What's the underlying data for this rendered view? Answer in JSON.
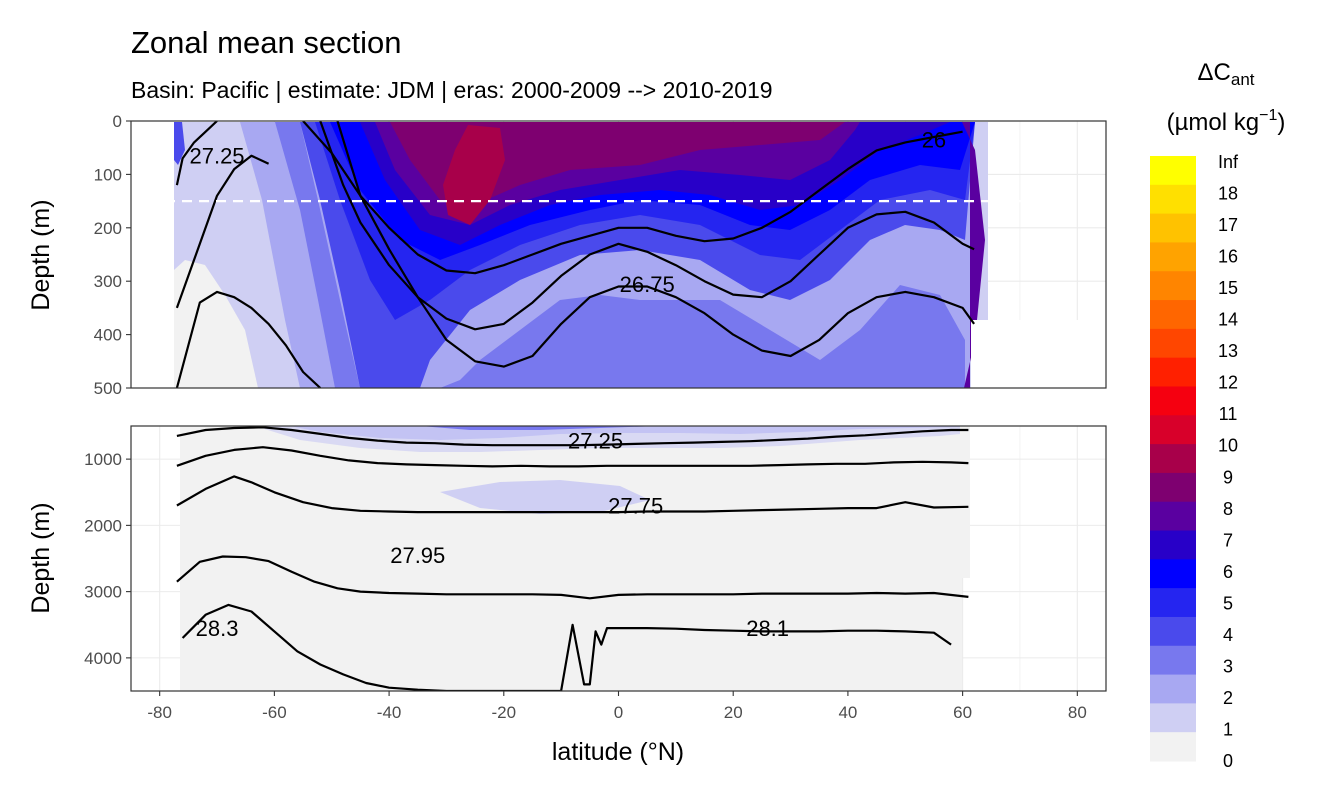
{
  "chart_data": {
    "type": "heatmap",
    "title": "Zonal mean section",
    "subtitle": "Basin: Pacific | estimate: JDM  | eras: 2000-2009 --> 2010-2019",
    "xlabel": "latitude (°N)",
    "xlim": [
      -85,
      85
    ],
    "x_ticks": [
      "-80",
      "-60",
      "-40",
      "-20",
      "0",
      "20",
      "40",
      "60",
      "80"
    ],
    "panels": [
      {
        "name": "upper",
        "ylabel": "Depth (m)",
        "ylim": [
          500,
          0
        ],
        "y_ticks": [
          "0",
          "100",
          "200",
          "300",
          "400",
          "500"
        ],
        "dashed_line_depth": 150
      },
      {
        "name": "lower",
        "ylabel": "Depth (m)",
        "ylim": [
          4500,
          500
        ],
        "y_ticks": [
          "1000",
          "2000",
          "3000",
          "4000"
        ]
      }
    ],
    "legend": {
      "title_main": "ΔC",
      "title_sub": "ant",
      "units_open": "(µmol kg",
      "units_sup": "−1",
      "units_close": ")",
      "position": "right",
      "labels": [
        "Inf",
        "18",
        "17",
        "16",
        "15",
        "14",
        "13",
        "12",
        "11",
        "10",
        "9",
        "8",
        "7",
        "6",
        "5",
        "4",
        "3",
        "2",
        "1",
        "0"
      ],
      "colors": [
        "#ffff00",
        "#ffe000",
        "#ffc200",
        "#ffa300",
        "#ff8500",
        "#ff6600",
        "#ff4600",
        "#ff2000",
        "#f50010",
        "#d8002a",
        "#a8004a",
        "#7e0070",
        "#5a00a0",
        "#2800c8",
        "#0000ff",
        "#2525f0",
        "#4a4aec",
        "#7878ee",
        "#a8a8f2",
        "#cfcff3",
        "#f2f2f2"
      ]
    },
    "contour_labels": [
      {
        "text": "27.25",
        "panel": "upper",
        "lat": -70,
        "depth": 65
      },
      {
        "text": "26",
        "panel": "upper",
        "lat": 55,
        "depth": 35
      },
      {
        "text": "26.75",
        "panel": "upper",
        "lat": 5,
        "depth": 305
      },
      {
        "text": "27.25",
        "panel": "lower",
        "lat": -4,
        "depth": 720
      },
      {
        "text": "27.75",
        "panel": "lower",
        "lat": 3,
        "depth": 1700
      },
      {
        "text": "27.95",
        "panel": "lower",
        "lat": -35,
        "depth": 2450
      },
      {
        "text": "28.3",
        "panel": "lower",
        "lat": -70,
        "depth": 3550
      },
      {
        "text": "28.1",
        "panel": "lower",
        "lat": 26,
        "depth": 3550
      }
    ],
    "isopycnals": [
      {
        "panel": "upper",
        "lat": [
          -77,
          -76,
          -74,
          -72,
          -70
        ],
        "depth": [
          120,
          70,
          40,
          20,
          0
        ]
      },
      {
        "panel": "upper",
        "lat": [
          -77,
          -74,
          -70,
          -67,
          -64,
          -61
        ],
        "depth": [
          350,
          260,
          140,
          90,
          65,
          80
        ]
      },
      {
        "panel": "upper",
        "lat": [
          -77,
          -73,
          -70,
          -67,
          -64,
          -61,
          -58,
          -55,
          -52
        ],
        "depth": [
          500,
          340,
          320,
          330,
          350,
          380,
          420,
          470,
          500
        ]
      },
      {
        "panel": "upper",
        "lat": [
          -55,
          -50,
          -45,
          -40,
          -35,
          -30,
          -25,
          -20,
          -15,
          -10,
          -5,
          0,
          5,
          10,
          15,
          20,
          25,
          30,
          35,
          40,
          45,
          50,
          55,
          60
        ],
        "depth": [
          0,
          60,
          140,
          200,
          250,
          280,
          285,
          270,
          250,
          230,
          215,
          200,
          200,
          215,
          225,
          220,
          200,
          170,
          130,
          90,
          55,
          40,
          30,
          20
        ]
      },
      {
        "panel": "upper",
        "lat": [
          -52,
          -48,
          -45,
          -40,
          -35,
          -30,
          -25,
          -20,
          -15,
          -10,
          -5,
          0,
          5,
          10,
          15,
          20,
          25,
          30,
          35,
          40,
          45,
          50,
          55,
          60,
          62
        ],
        "depth": [
          0,
          120,
          190,
          270,
          330,
          370,
          390,
          380,
          340,
          290,
          250,
          230,
          245,
          270,
          300,
          325,
          330,
          300,
          250,
          200,
          175,
          170,
          190,
          230,
          240
        ]
      },
      {
        "panel": "upper",
        "lat": [
          -49,
          -45,
          -40,
          -35,
          -30,
          -25,
          -20,
          -15,
          -10,
          -5,
          0,
          5,
          10,
          15,
          20,
          25,
          30,
          35,
          40,
          45,
          50,
          55,
          60,
          62
        ],
        "depth": [
          0,
          140,
          240,
          330,
          410,
          450,
          460,
          440,
          380,
          330,
          310,
          310,
          330,
          360,
          400,
          430,
          440,
          410,
          360,
          330,
          320,
          330,
          350,
          380
        ]
      },
      {
        "panel": "lower",
        "lat": [
          -77,
          -72,
          -67,
          -62,
          -57,
          -52,
          -47,
          -42,
          -37,
          -32,
          -27,
          -22,
          -17,
          -12,
          -7,
          -2,
          3,
          8,
          13,
          18,
          23,
          28,
          33,
          38,
          43,
          48,
          53,
          58,
          61
        ],
        "depth": [
          650,
          560,
          530,
          520,
          560,
          620,
          680,
          720,
          750,
          760,
          780,
          790,
          790,
          790,
          790,
          780,
          770,
          760,
          750,
          740,
          730,
          710,
          690,
          660,
          640,
          610,
          580,
          560,
          560
        ]
      },
      {
        "panel": "lower",
        "lat": [
          -77,
          -72,
          -67,
          -62,
          -57,
          -52,
          -47,
          -42,
          -37,
          -32,
          -27,
          -22,
          -17,
          -12,
          -7,
          -2,
          3,
          8,
          13,
          18,
          23,
          28,
          33,
          38,
          43,
          48,
          53,
          58,
          61
        ],
        "depth": [
          1100,
          950,
          860,
          820,
          870,
          950,
          1020,
          1060,
          1080,
          1090,
          1100,
          1110,
          1100,
          1110,
          1110,
          1100,
          1100,
          1100,
          1100,
          1100,
          1100,
          1090,
          1080,
          1070,
          1070,
          1050,
          1040,
          1050,
          1060
        ]
      },
      {
        "panel": "lower",
        "lat": [
          -77,
          -72,
          -67,
          -64,
          -60,
          -55,
          -50,
          -45,
          -40,
          -35,
          -30,
          -25,
          -20,
          -15,
          -10,
          -5,
          0,
          5,
          10,
          15,
          20,
          25,
          30,
          35,
          40,
          45,
          50,
          55,
          61
        ],
        "depth": [
          1700,
          1450,
          1260,
          1350,
          1500,
          1650,
          1740,
          1780,
          1790,
          1800,
          1800,
          1800,
          1800,
          1800,
          1800,
          1800,
          1800,
          1790,
          1790,
          1790,
          1780,
          1770,
          1760,
          1750,
          1740,
          1740,
          1650,
          1730,
          1720
        ]
      },
      {
        "panel": "lower",
        "lat": [
          -77,
          -73,
          -69,
          -65,
          -61,
          -57,
          -53,
          -49,
          -45,
          -40,
          -35,
          -30,
          -25,
          -20,
          -15,
          -10,
          -5,
          0,
          5,
          10,
          15,
          20,
          25,
          30,
          35,
          40,
          45,
          50,
          55,
          61
        ],
        "depth": [
          2850,
          2550,
          2470,
          2480,
          2540,
          2700,
          2850,
          2950,
          3000,
          3020,
          3030,
          3040,
          3040,
          3040,
          3040,
          3050,
          3100,
          3050,
          3040,
          3040,
          3040,
          3040,
          3030,
          3030,
          3030,
          3030,
          3020,
          3030,
          3020,
          3080
        ]
      },
      {
        "panel": "lower",
        "lat": [
          -76,
          -72,
          -68,
          -64,
          -60,
          -56,
          -52,
          -48,
          -44,
          -40,
          -35,
          -30,
          -25,
          -20,
          -15,
          -10,
          -8,
          -6,
          -5,
          -4,
          -3,
          -2,
          0,
          5,
          10,
          15,
          20,
          25,
          30,
          35,
          40,
          45,
          50,
          55,
          58
        ],
        "depth": [
          3700,
          3350,
          3200,
          3300,
          3600,
          3900,
          4100,
          4250,
          4380,
          4450,
          4480,
          4500,
          4500,
          4500,
          4500,
          4500,
          3500,
          4400,
          4400,
          3600,
          3800,
          3550,
          3550,
          3550,
          3560,
          3580,
          3590,
          3600,
          3600,
          3600,
          3590,
          3590,
          3600,
          3620,
          3800
        ]
      }
    ]
  }
}
